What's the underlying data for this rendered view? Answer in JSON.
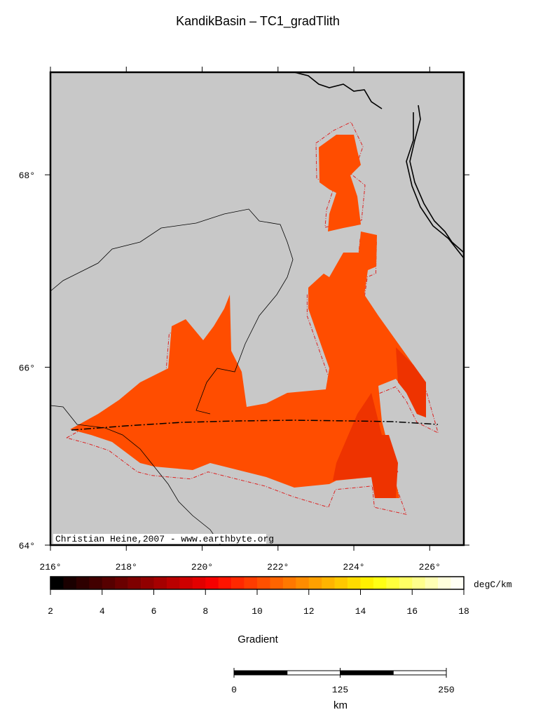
{
  "title": "KandikBasin – TC1_gradTlith",
  "map": {
    "projection": "mercator",
    "lon_range": [
      216,
      226.9
    ],
    "lat_range": [
      64,
      69
    ],
    "lon_ticks": [
      {
        "value": 216,
        "label": "216°"
      },
      {
        "value": 218,
        "label": "218°"
      },
      {
        "value": 220,
        "label": "220°"
      },
      {
        "value": 222,
        "label": "222°"
      },
      {
        "value": 224,
        "label": "224°"
      },
      {
        "value": 226,
        "label": "226°"
      }
    ],
    "lat_ticks": [
      {
        "value": 64,
        "label": "64°"
      },
      {
        "value": 66,
        "label": "66°"
      },
      {
        "value": 68,
        "label": "68°"
      }
    ],
    "credit": "Christian Heine,2007 - www.earthbyte.org"
  },
  "colorbar": {
    "label": "Gradient",
    "unit": "degC/km",
    "range": [
      2,
      18
    ],
    "ticks": [
      2,
      4,
      6,
      8,
      10,
      12,
      14,
      16,
      18
    ],
    "colors": [
      "#000000",
      "#1a0000",
      "#2e0000",
      "#420000",
      "#560000",
      "#6a0000",
      "#7e0000",
      "#920000",
      "#a60000",
      "#ba0000",
      "#ce0000",
      "#e20000",
      "#f60000",
      "#ff1400",
      "#ff2800",
      "#ff3c00",
      "#ff5000",
      "#ff6400",
      "#ff7800",
      "#ff8c00",
      "#ffa000",
      "#ffb400",
      "#ffc800",
      "#ffdc00",
      "#fff000",
      "#ffff14",
      "#ffff3c",
      "#ffff64",
      "#ffff8c",
      "#ffffb4",
      "#ffffdc",
      "#fffff4"
    ]
  },
  "scalebar": {
    "unit": "km",
    "ticks": [
      0,
      125,
      250
    ]
  }
}
